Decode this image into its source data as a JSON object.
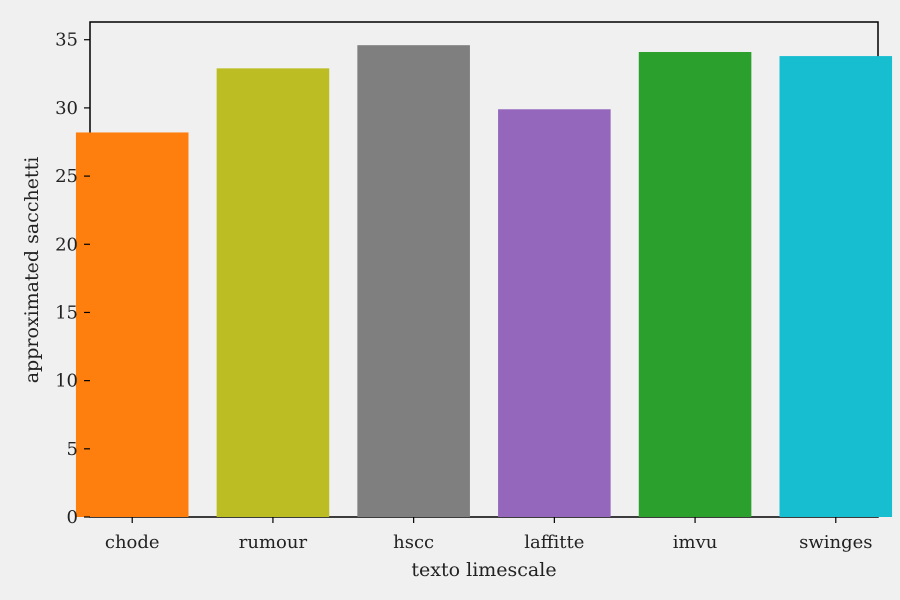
{
  "chart_data": {
    "type": "bar",
    "title": "",
    "xlabel": "texto limescale",
    "ylabel": "approximated sacchetti",
    "categories": [
      "chode",
      "rumour",
      "hscc",
      "laffitte",
      "imvu",
      "swinges"
    ],
    "values": [
      28.2,
      32.9,
      34.6,
      29.9,
      34.1,
      33.8
    ],
    "colors": [
      "#ff7f0e",
      "#bcbd22",
      "#7f7f7f",
      "#9467bd",
      "#2ca02c",
      "#17becf"
    ],
    "yticks": [
      0,
      5,
      10,
      15,
      20,
      25,
      30,
      35
    ],
    "ylim": [
      0,
      36.3
    ],
    "grid": false,
    "background": "#f0f0f0"
  }
}
